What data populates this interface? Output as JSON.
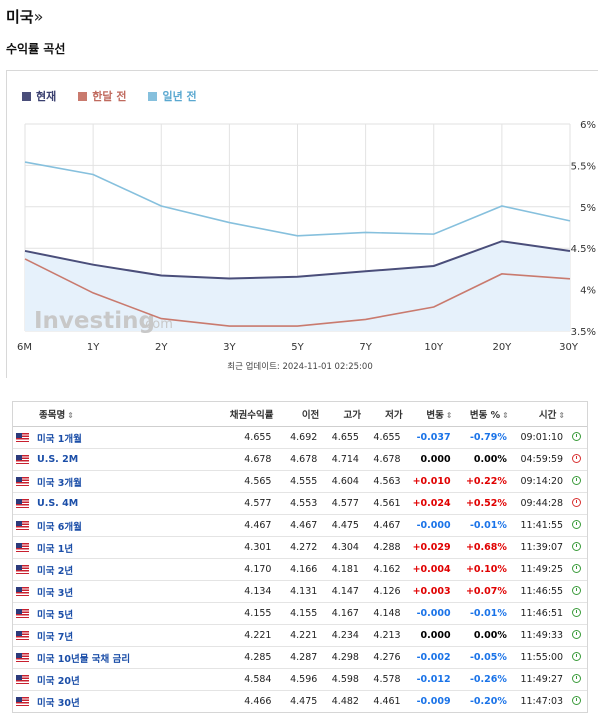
{
  "header": {
    "title": "미국",
    "title_suffix": "»",
    "subtitle": "수익률 곡선"
  },
  "chart_data": {
    "type": "line",
    "categories": [
      "6M",
      "1Y",
      "2Y",
      "3Y",
      "5Y",
      "7Y",
      "10Y",
      "20Y",
      "30Y"
    ],
    "series": [
      {
        "name": "현재",
        "color": "#4a4e7a",
        "values": [
          4.467,
          4.301,
          4.17,
          4.134,
          4.155,
          4.221,
          4.285,
          4.584,
          4.466
        ],
        "fill": "#e6f1fb"
      },
      {
        "name": "한달 전",
        "color": "#c97a6e",
        "values": [
          4.37,
          3.96,
          3.65,
          3.56,
          3.56,
          3.64,
          3.79,
          4.19,
          4.13
        ]
      },
      {
        "name": "일년 전",
        "color": "#86c0dd",
        "values": [
          5.54,
          5.39,
          5.01,
          4.81,
          4.65,
          4.69,
          4.67,
          5.01,
          4.83
        ]
      }
    ],
    "y_ticks": [
      "6%",
      "5.5%",
      "5%",
      "4.5%",
      "4%",
      "3.5%"
    ],
    "ylim": [
      3.5,
      6.0
    ],
    "grid": true,
    "legend": "top-left",
    "watermark": "Investing.com"
  },
  "updated": "최근 업데이트: 2024-11-01 02:25:00",
  "table": {
    "headers": [
      "종목명",
      "채권수익률",
      "이전",
      "고가",
      "저가",
      "변동",
      "변동 %",
      "시간"
    ],
    "rows": [
      {
        "name": "미국 1개월",
        "yield": "4.655",
        "prev": "4.692",
        "high": "4.655",
        "low": "4.655",
        "chg": "-0.037",
        "chg_pct": "-0.79%",
        "time": "09:01:10",
        "dir": "neg",
        "clock": "green"
      },
      {
        "name": "U.S. 2M",
        "yield": "4.678",
        "prev": "4.678",
        "high": "4.714",
        "low": "4.678",
        "chg": "0.000",
        "chg_pct": "0.00%",
        "time": "04:59:59",
        "dir": "zero",
        "clock": "red"
      },
      {
        "name": "미국 3개월",
        "yield": "4.565",
        "prev": "4.555",
        "high": "4.604",
        "low": "4.563",
        "chg": "+0.010",
        "chg_pct": "+0.22%",
        "time": "09:14:20",
        "dir": "pos",
        "clock": "green"
      },
      {
        "name": "U.S. 4M",
        "yield": "4.577",
        "prev": "4.553",
        "high": "4.577",
        "low": "4.561",
        "chg": "+0.024",
        "chg_pct": "+0.52%",
        "time": "09:44:28",
        "dir": "pos",
        "clock": "red"
      },
      {
        "name": "미국 6개월",
        "yield": "4.467",
        "prev": "4.467",
        "high": "4.475",
        "low": "4.467",
        "chg": "-0.000",
        "chg_pct": "-0.01%",
        "time": "11:41:55",
        "dir": "neg",
        "clock": "green"
      },
      {
        "name": "미국 1년",
        "yield": "4.301",
        "prev": "4.272",
        "high": "4.304",
        "low": "4.288",
        "chg": "+0.029",
        "chg_pct": "+0.68%",
        "time": "11:39:07",
        "dir": "pos",
        "clock": "green"
      },
      {
        "name": "미국 2년",
        "yield": "4.170",
        "prev": "4.166",
        "high": "4.181",
        "low": "4.162",
        "chg": "+0.004",
        "chg_pct": "+0.10%",
        "time": "11:49:25",
        "dir": "pos",
        "clock": "green"
      },
      {
        "name": "미국 3년",
        "yield": "4.134",
        "prev": "4.131",
        "high": "4.147",
        "low": "4.126",
        "chg": "+0.003",
        "chg_pct": "+0.07%",
        "time": "11:46:55",
        "dir": "pos",
        "clock": "green"
      },
      {
        "name": "미국 5년",
        "yield": "4.155",
        "prev": "4.155",
        "high": "4.167",
        "low": "4.148",
        "chg": "-0.000",
        "chg_pct": "-0.01%",
        "time": "11:46:51",
        "dir": "neg",
        "clock": "green"
      },
      {
        "name": "미국 7년",
        "yield": "4.221",
        "prev": "4.221",
        "high": "4.234",
        "low": "4.213",
        "chg": "0.000",
        "chg_pct": "0.00%",
        "time": "11:49:33",
        "dir": "zero",
        "clock": "green"
      },
      {
        "name": "미국 10년물 국채 금리",
        "yield": "4.285",
        "prev": "4.287",
        "high": "4.298",
        "low": "4.276",
        "chg": "-0.002",
        "chg_pct": "-0.05%",
        "time": "11:55:00",
        "dir": "neg",
        "clock": "green"
      },
      {
        "name": "미국 20년",
        "yield": "4.584",
        "prev": "4.596",
        "high": "4.598",
        "low": "4.578",
        "chg": "-0.012",
        "chg_pct": "-0.26%",
        "time": "11:49:27",
        "dir": "neg",
        "clock": "green"
      },
      {
        "name": "미국 30년",
        "yield": "4.466",
        "prev": "4.475",
        "high": "4.482",
        "low": "4.461",
        "chg": "-0.009",
        "chg_pct": "-0.20%",
        "time": "11:47:03",
        "dir": "neg",
        "clock": "green"
      }
    ]
  }
}
